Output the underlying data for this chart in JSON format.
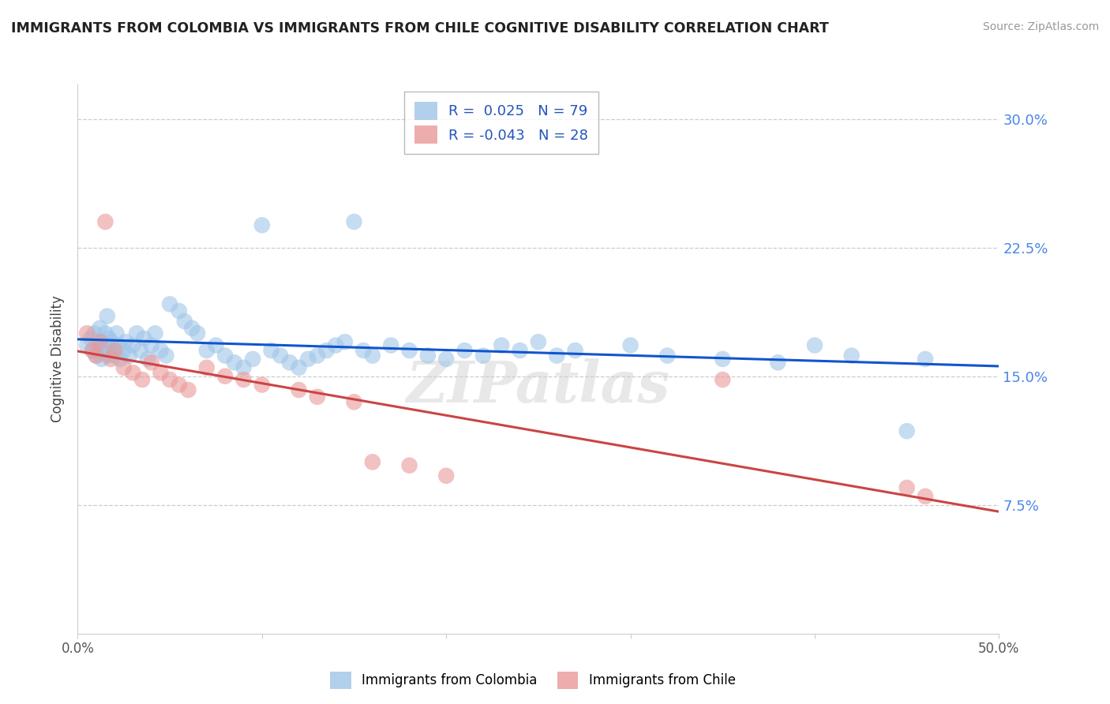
{
  "title": "IMMIGRANTS FROM COLOMBIA VS IMMIGRANTS FROM CHILE COGNITIVE DISABILITY CORRELATION CHART",
  "source": "Source: ZipAtlas.com",
  "ylabel": "Cognitive Disability",
  "xlim": [
    0.0,
    0.5
  ],
  "ylim": [
    0.0,
    0.32
  ],
  "colombia_R": 0.025,
  "colombia_N": 79,
  "chile_R": -0.043,
  "chile_N": 28,
  "colombia_color": "#9fc5e8",
  "chile_color": "#ea9999",
  "colombia_line_color": "#1155cc",
  "chile_line_color": "#cc4444",
  "ytick_color": "#4a86e8",
  "watermark": "ZIPatlas",
  "colombia_x": [
    0.005,
    0.007,
    0.008,
    0.009,
    0.01,
    0.01,
    0.011,
    0.012,
    0.012,
    0.013,
    0.013,
    0.014,
    0.015,
    0.015,
    0.016,
    0.016,
    0.017,
    0.018,
    0.018,
    0.019,
    0.02,
    0.021,
    0.022,
    0.023,
    0.025,
    0.026,
    0.028,
    0.03,
    0.032,
    0.034,
    0.036,
    0.038,
    0.04,
    0.042,
    0.045,
    0.048,
    0.05,
    0.055,
    0.058,
    0.062,
    0.065,
    0.07,
    0.075,
    0.08,
    0.085,
    0.09,
    0.095,
    0.1,
    0.105,
    0.11,
    0.115,
    0.12,
    0.125,
    0.13,
    0.135,
    0.14,
    0.145,
    0.15,
    0.155,
    0.16,
    0.17,
    0.18,
    0.19,
    0.2,
    0.21,
    0.22,
    0.23,
    0.24,
    0.25,
    0.26,
    0.27,
    0.3,
    0.32,
    0.35,
    0.38,
    0.4,
    0.42,
    0.45,
    0.46
  ],
  "colombia_y": [
    0.168,
    0.172,
    0.165,
    0.175,
    0.17,
    0.162,
    0.168,
    0.178,
    0.165,
    0.17,
    0.16,
    0.165,
    0.175,
    0.168,
    0.162,
    0.185,
    0.172,
    0.165,
    0.17,
    0.168,
    0.162,
    0.175,
    0.168,
    0.16,
    0.165,
    0.17,
    0.162,
    0.168,
    0.175,
    0.165,
    0.172,
    0.16,
    0.168,
    0.175,
    0.165,
    0.162,
    0.192,
    0.188,
    0.182,
    0.178,
    0.175,
    0.165,
    0.168,
    0.162,
    0.158,
    0.155,
    0.16,
    0.238,
    0.165,
    0.162,
    0.158,
    0.155,
    0.16,
    0.162,
    0.165,
    0.168,
    0.17,
    0.24,
    0.165,
    0.162,
    0.168,
    0.165,
    0.162,
    0.16,
    0.165,
    0.162,
    0.168,
    0.165,
    0.17,
    0.162,
    0.165,
    0.168,
    0.162,
    0.16,
    0.158,
    0.168,
    0.162,
    0.118,
    0.16
  ],
  "chile_x": [
    0.005,
    0.008,
    0.01,
    0.012,
    0.015,
    0.018,
    0.02,
    0.025,
    0.03,
    0.035,
    0.04,
    0.045,
    0.05,
    0.055,
    0.06,
    0.07,
    0.08,
    0.09,
    0.1,
    0.12,
    0.13,
    0.15,
    0.16,
    0.18,
    0.2,
    0.35,
    0.45,
    0.46
  ],
  "chile_y": [
    0.175,
    0.165,
    0.162,
    0.17,
    0.24,
    0.16,
    0.165,
    0.155,
    0.152,
    0.148,
    0.158,
    0.152,
    0.148,
    0.145,
    0.142,
    0.155,
    0.15,
    0.148,
    0.145,
    0.142,
    0.138,
    0.135,
    0.1,
    0.098,
    0.092,
    0.148,
    0.085,
    0.08
  ]
}
